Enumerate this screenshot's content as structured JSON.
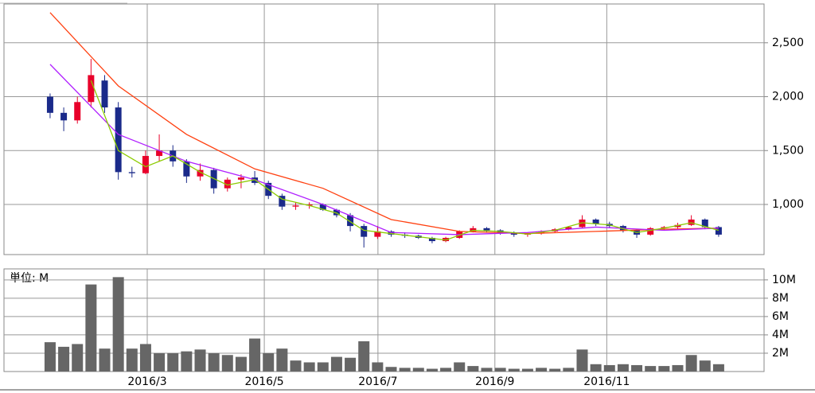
{
  "chart_data": [
    {
      "type": "candlestick",
      "up_color": "#e8002a",
      "down_color": "#1a2a8a",
      "open": [
        2000,
        1850,
        1780,
        1950,
        2150,
        1900,
        1300,
        1290,
        1450,
        1500,
        1400,
        1260,
        1320,
        1150,
        1230,
        1250,
        1200,
        1080,
        980,
        990,
        1000,
        950,
        900,
        800,
        700,
        750,
        720,
        710,
        690,
        660,
        690,
        750,
        780,
        760,
        740,
        720,
        730,
        750,
        770,
        790,
        860,
        820,
        800,
        760,
        720,
        780,
        790,
        810,
        860,
        790
      ],
      "high": [
        2030,
        1900,
        2000,
        2350,
        2200,
        1950,
        1350,
        1500,
        1650,
        1550,
        1420,
        1380,
        1340,
        1250,
        1280,
        1310,
        1220,
        1100,
        1020,
        1020,
        1010,
        960,
        920,
        820,
        800,
        760,
        740,
        720,
        700,
        700,
        760,
        800,
        790,
        770,
        750,
        740,
        760,
        780,
        800,
        900,
        870,
        840,
        810,
        770,
        790,
        800,
        830,
        900,
        870,
        800
      ],
      "low": [
        1800,
        1680,
        1750,
        1900,
        1850,
        1230,
        1250,
        1280,
        1400,
        1350,
        1200,
        1220,
        1100,
        1120,
        1150,
        1180,
        1050,
        950,
        950,
        960,
        940,
        880,
        750,
        600,
        680,
        700,
        690,
        680,
        640,
        650,
        680,
        740,
        740,
        720,
        700,
        700,
        720,
        740,
        760,
        780,
        800,
        780,
        740,
        690,
        710,
        760,
        770,
        800,
        770,
        700
      ],
      "close": [
        1850,
        1780,
        1950,
        2200,
        1900,
        1300,
        1290,
        1450,
        1500,
        1400,
        1260,
        1320,
        1150,
        1230,
        1250,
        1200,
        1080,
        980,
        990,
        1000,
        950,
        900,
        800,
        700,
        750,
        720,
        710,
        690,
        660,
        690,
        750,
        780,
        760,
        740,
        720,
        730,
        750,
        770,
        790,
        860,
        820,
        800,
        760,
        720,
        780,
        790,
        810,
        860,
        790,
        720
      ],
      "series": [
        {
          "color": "#ff4010",
          "x": [
            0,
            5,
            10,
            15,
            20,
            25,
            30,
            35,
            40,
            45,
            49
          ],
          "values": [
            2780,
            2100,
            1650,
            1330,
            1150,
            860,
            750,
            730,
            750,
            770,
            780
          ]
        },
        {
          "color": "#b020ff",
          "x": [
            0,
            5,
            10,
            15,
            20,
            25,
            30,
            35,
            40,
            45,
            49
          ],
          "values": [
            2300,
            1650,
            1400,
            1230,
            1000,
            740,
            720,
            740,
            790,
            760,
            780
          ]
        },
        {
          "color": "#8ccc00",
          "x": [
            3,
            5,
            7,
            9,
            11,
            13,
            15,
            17,
            19,
            21,
            23,
            25,
            27,
            29,
            31,
            33,
            35,
            37,
            39,
            41,
            43,
            45,
            47,
            49
          ],
          "values": [
            2150,
            1500,
            1350,
            1450,
            1300,
            1180,
            1230,
            1050,
            990,
            920,
            760,
            730,
            700,
            670,
            760,
            750,
            725,
            760,
            830,
            810,
            740,
            780,
            830,
            760
          ]
        }
      ],
      "ylim": [
        535,
        2860
      ],
      "yticks": [
        {
          "value": 1000,
          "label": "1,000"
        },
        {
          "value": 1500,
          "label": "1,500"
        },
        {
          "value": 2000,
          "label": "2,000"
        },
        {
          "value": 2500,
          "label": "2,500"
        }
      ],
      "grid": true
    },
    {
      "type": "bar",
      "unit_label": "単位: M",
      "color": "#666666",
      "values": [
        3.2,
        2.7,
        3.0,
        9.5,
        2.5,
        10.3,
        2.5,
        3.0,
        2.0,
        2.0,
        2.2,
        2.4,
        2.0,
        1.8,
        1.6,
        3.6,
        2.0,
        2.5,
        1.2,
        1.0,
        1.0,
        1.6,
        1.5,
        3.3,
        1.0,
        0.5,
        0.4,
        0.4,
        0.3,
        0.4,
        1.0,
        0.6,
        0.4,
        0.4,
        0.3,
        0.3,
        0.4,
        0.3,
        0.4,
        2.4,
        0.8,
        0.7,
        0.8,
        0.7,
        0.6,
        0.6,
        0.7,
        1.8,
        1.2,
        0.8
      ],
      "ylim": [
        0,
        11.2
      ],
      "yticks": [
        {
          "value": 2,
          "label": "2M"
        },
        {
          "value": 4,
          "label": "4M"
        },
        {
          "value": 6,
          "label": "6M"
        },
        {
          "value": 8,
          "label": "8M"
        },
        {
          "value": 10,
          "label": "10M"
        }
      ],
      "xlim": [
        -3.38,
        52.33
      ],
      "xticks": [
        {
          "value": 7.12,
          "label": "2016/3"
        },
        {
          "value": 15.7,
          "label": "2016/5"
        },
        {
          "value": 24.03,
          "label": "2016/7"
        },
        {
          "value": 32.6,
          "label": "2016/9"
        },
        {
          "value": 40.8,
          "label": "2016/11"
        }
      ],
      "grid": true
    }
  ]
}
